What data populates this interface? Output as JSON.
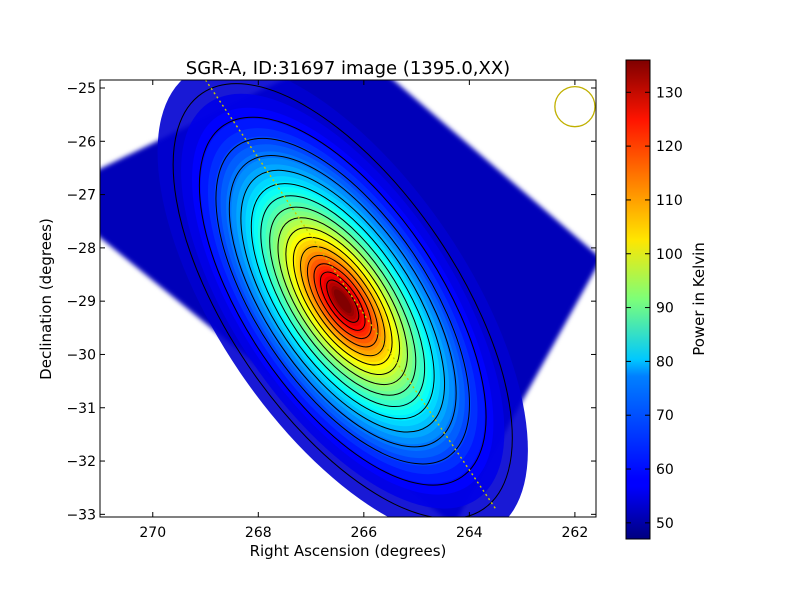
{
  "chart_data": {
    "type": "heatmap",
    "title": "SGR-A, ID:31697 image (1395.0,XX)",
    "xlabel": "Right Ascension (degrees)",
    "ylabel": "Declination (degrees)",
    "xlim": [
      271.0,
      261.6
    ],
    "ylim": [
      -33.05,
      -24.85
    ],
    "x_ticks": [
      270,
      268,
      266,
      264,
      262
    ],
    "x_tick_labels": [
      "270",
      "268",
      "266",
      "264",
      "262"
    ],
    "y_ticks": [
      -25,
      -26,
      -27,
      -28,
      -29,
      -30,
      -31,
      -32,
      -33
    ],
    "y_tick_labels": [
      "−25",
      "−26",
      "−27",
      "−28",
      "−29",
      "−30",
      "−31",
      "−32",
      "−33"
    ],
    "colorbar": {
      "label": "Power in Kelvin",
      "range": [
        47,
        136
      ],
      "ticks": [
        50,
        60,
        70,
        80,
        90,
        100,
        110,
        120,
        130
      ],
      "tick_labels": [
        "50",
        "60",
        "70",
        "80",
        "90",
        "100",
        "110",
        "120",
        "130"
      ],
      "colormap": "jet"
    },
    "map_footprint_corners": [
      [
        266.2,
        -24.2
      ],
      [
        261.5,
        -28.2
      ],
      [
        264.3,
        -33.2
      ],
      [
        272.0,
        -27.0
      ]
    ],
    "peak": {
      "x": 266.4,
      "y": -29.0,
      "value": 136
    },
    "background_level": 52,
    "contour_levels": [
      55,
      60,
      65,
      70,
      75,
      80,
      85,
      90,
      95,
      100,
      105,
      110,
      115,
      120,
      125,
      130
    ],
    "galactic_plane_line": [
      [
        269.0,
        -24.85
      ],
      [
        263.5,
        -32.9
      ]
    ],
    "beam_circle": {
      "x": 262.0,
      "y": -25.35,
      "radius_deg": 0.38
    },
    "grid": false
  }
}
